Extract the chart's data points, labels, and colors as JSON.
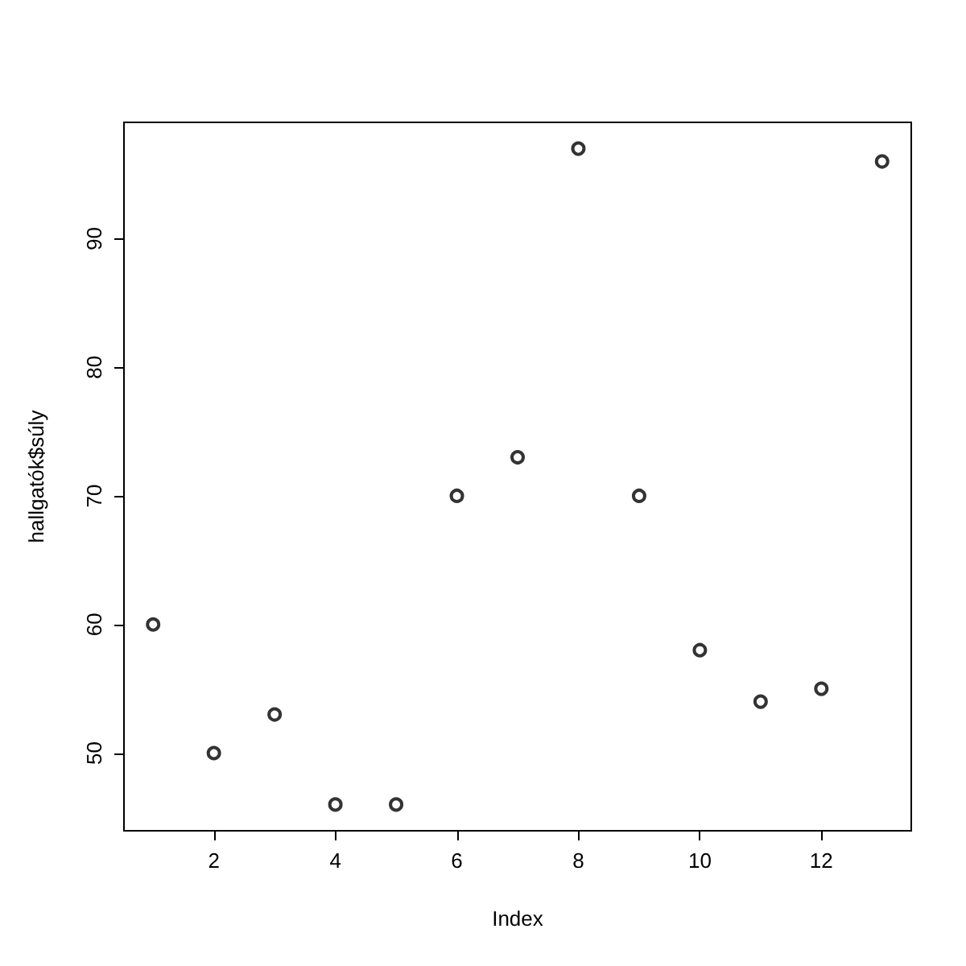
{
  "chart_data": {
    "type": "scatter",
    "xlabel": "Index",
    "ylabel": "hallgatók$súly",
    "x": [
      1,
      2,
      3,
      4,
      5,
      6,
      7,
      8,
      9,
      10,
      11,
      12,
      13
    ],
    "series": [
      {
        "color": "#000000",
        "values": [
          60,
          50,
          53,
          46,
          46,
          70,
          73,
          97,
          70,
          58,
          54,
          55,
          96
        ]
      }
    ],
    "xlim": [
      0.52,
      13.48
    ],
    "xticks": [
      2,
      4,
      6,
      8,
      10,
      12
    ],
    "ylim": [
      43.96,
      99.04
    ],
    "yticks": [
      50,
      60,
      70,
      80,
      90
    ],
    "grid": false,
    "marker": "circle"
  }
}
